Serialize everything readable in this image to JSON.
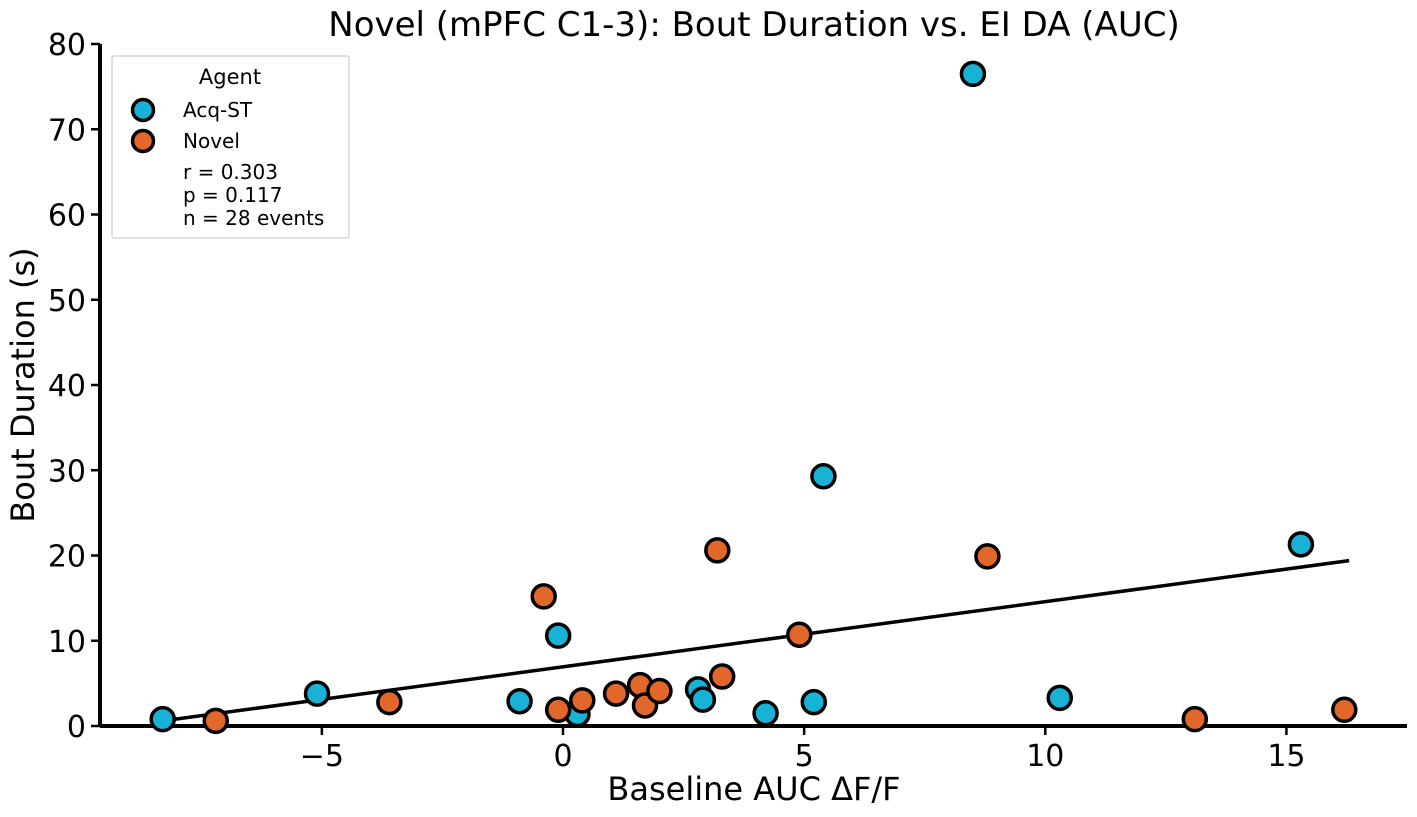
{
  "chart_data": {
    "type": "scatter",
    "title": "Novel (mPFC C1-3): Bout Duration vs. EI DA (AUC)",
    "xlabel": "Baseline AUC ΔF/F",
    "ylabel": "Bout Duration (s)",
    "xlim": [
      -9.6,
      17.5
    ],
    "ylim": [
      0,
      80
    ],
    "xticks": [
      -5,
      0,
      5,
      10,
      15
    ],
    "xtick_labels": [
      "−5",
      "0",
      "5",
      "10",
      "15"
    ],
    "yticks": [
      0,
      10,
      20,
      30,
      40,
      50,
      60,
      70,
      80
    ],
    "yticklabels": [
      "0",
      "10",
      "20",
      "30",
      "40",
      "50",
      "60",
      "70",
      "80"
    ],
    "grid": false,
    "legend": {
      "title": "Agent",
      "placement": "top-left",
      "stats": [
        "r = 0.303",
        "p = 0.117",
        "n = 28 events"
      ]
    },
    "series": [
      {
        "name": "Acq-ST",
        "color": "#17b2d6",
        "points": [
          [
            -8.3,
            0.8
          ],
          [
            -5.1,
            3.8
          ],
          [
            -0.9,
            2.9
          ],
          [
            -0.1,
            10.6
          ],
          [
            0.3,
            1.4
          ],
          [
            2.8,
            4.3
          ],
          [
            2.9,
            3.1
          ],
          [
            4.2,
            1.5
          ],
          [
            5.2,
            2.8
          ],
          [
            5.4,
            29.3
          ],
          [
            8.5,
            76.5
          ],
          [
            10.3,
            3.3
          ],
          [
            15.3,
            21.3
          ]
        ]
      },
      {
        "name": "Novel",
        "color": "#e2672a",
        "points": [
          [
            -7.2,
            0.6
          ],
          [
            -3.6,
            2.8
          ],
          [
            -0.4,
            15.2
          ],
          [
            -0.1,
            1.9
          ],
          [
            0.4,
            3.0
          ],
          [
            1.1,
            3.8
          ],
          [
            1.6,
            4.8
          ],
          [
            1.7,
            2.4
          ],
          [
            2.0,
            4.1
          ],
          [
            3.2,
            20.6
          ],
          [
            3.3,
            5.8
          ],
          [
            4.9,
            10.7
          ],
          [
            8.8,
            19.9
          ],
          [
            13.1,
            0.8
          ],
          [
            16.2,
            1.9
          ]
        ]
      }
    ],
    "fit_line": {
      "x": [
        -8.3,
        16.3
      ],
      "y": [
        0.6,
        19.4
      ],
      "color": "#000000"
    }
  }
}
